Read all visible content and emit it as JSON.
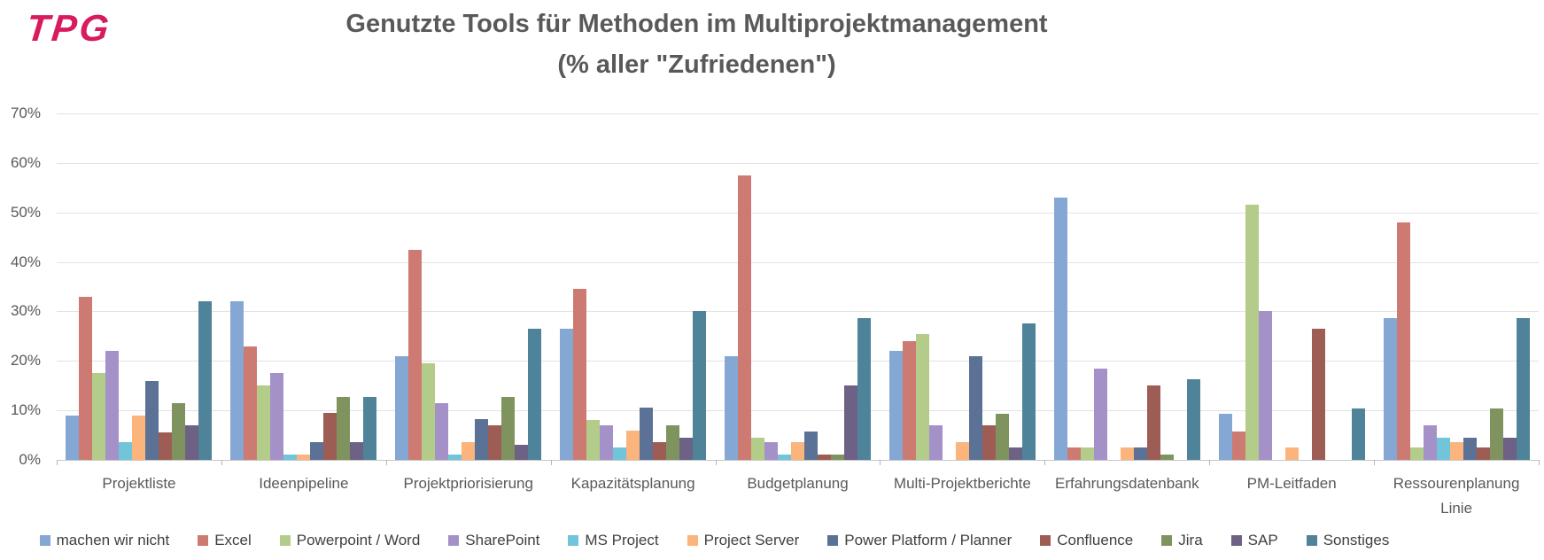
{
  "header": {
    "logo_text": "TPG",
    "logo_color": "#d81a5e"
  },
  "chart_data": {
    "type": "bar",
    "title_line1": "Genutzte Tools für Methoden im Multiprojektmanagement",
    "title_line2": "(% aller \"Zufriedenen\")",
    "ylabel": "",
    "xlabel": "",
    "ylim": [
      0,
      70
    ],
    "ymax": 70,
    "yticks": [
      "70%",
      "60%",
      "50%",
      "40%",
      "30%",
      "20%",
      "10%",
      "0%"
    ],
    "grid": true,
    "legend_position": "bottom",
    "categories": [
      "Projektliste",
      "Ideenpipeline",
      "Projektpriorisierung",
      "Kapazitätsplanung",
      "Budgetplanung",
      "Multi-Projektberichte",
      "Erfahrungsdatenbank",
      "PM-Leitfaden",
      "Ressourenplanung\nLinie"
    ],
    "series": [
      {
        "name": "machen wir nicht",
        "color": "#84a7d3",
        "values": [
          9,
          32,
          21,
          26.5,
          21,
          22,
          53,
          9.3,
          28.7
        ]
      },
      {
        "name": "Excel",
        "color": "#cd7b72",
        "values": [
          33,
          23,
          42.5,
          34.5,
          57.5,
          24,
          2.5,
          5.8,
          48
        ]
      },
      {
        "name": "Powerpoint / Word",
        "color": "#b4cc8a",
        "values": [
          17.5,
          15,
          19.5,
          8,
          4.5,
          25.5,
          2.5,
          51.5,
          2.5
        ]
      },
      {
        "name": "SharePoint",
        "color": "#a491c8",
        "values": [
          22,
          17.5,
          11.5,
          7,
          3.5,
          7,
          18.5,
          30,
          7
        ]
      },
      {
        "name": "MS Project",
        "color": "#70c5da",
        "values": [
          3.5,
          1,
          1,
          2.5,
          1,
          0,
          0,
          0,
          4.5
        ]
      },
      {
        "name": "Project Server",
        "color": "#fab47c",
        "values": [
          9,
          1,
          3.5,
          6,
          3.5,
          3.5,
          2.5,
          2.5,
          3.5
        ]
      },
      {
        "name": "Power Platform / Planner",
        "color": "#5b7296",
        "values": [
          16,
          3.5,
          8.3,
          10.5,
          5.7,
          21,
          2.5,
          0,
          4.5
        ]
      },
      {
        "name": "Confluence",
        "color": "#9d5d55",
        "values": [
          5.5,
          9.5,
          7,
          3.5,
          1,
          7,
          15,
          26.5,
          2.5
        ]
      },
      {
        "name": "Jira",
        "color": "#7f935f",
        "values": [
          11.5,
          12.8,
          12.8,
          7,
          1,
          9.3,
          1,
          0,
          10.3
        ]
      },
      {
        "name": "SAP",
        "color": "#6d6186",
        "values": [
          7,
          3.5,
          3,
          4.5,
          15,
          2.5,
          0,
          0,
          4.5
        ]
      },
      {
        "name": "Sonstiges",
        "color": "#4e8399",
        "values": [
          32,
          12.8,
          26.5,
          30,
          28.7,
          27.5,
          16.3,
          10.3,
          28.7
        ]
      }
    ]
  }
}
